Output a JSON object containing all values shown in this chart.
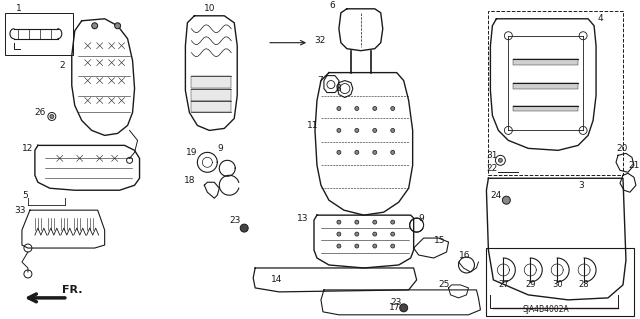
{
  "bg_color": "#ffffff",
  "line_color": "#1a1a1a",
  "diagram_code": "SJA4B4002A",
  "figsize": [
    6.4,
    3.19
  ],
  "dpi": 100
}
